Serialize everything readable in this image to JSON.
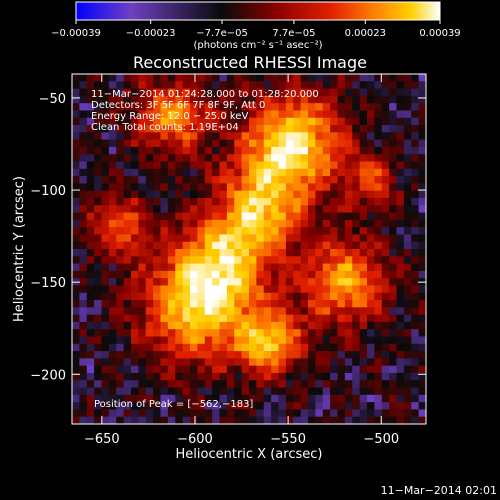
{
  "chart_data": {
    "type": "heatmap",
    "title": "Reconstructed RHESSI Image",
    "xlabel": "Heliocentric X (arcsec)",
    "ylabel": "Heliocentric Y (arcsec)",
    "xlim": [
      -666,
      -476
    ],
    "ylim": [
      -227,
      -37
    ],
    "x_ticks": [
      -650,
      -600,
      -550,
      -500
    ],
    "y_ticks": [
      -50,
      -100,
      -150,
      -200
    ],
    "x_tick_labels": [
      "−650",
      "−600",
      "−550",
      "−500"
    ],
    "y_tick_labels": [
      "−50",
      "−100",
      "−150",
      "−200"
    ],
    "grid": false,
    "colorbar": {
      "range": [
        -0.00039,
        0.00039
      ],
      "ticks": [
        -0.00039,
        -0.00023,
        -7.7e-05,
        7.7e-05,
        0.00023,
        0.00039
      ],
      "tick_labels": [
        "−0.00039",
        "−0.00023",
        "−7.7e−05",
        "7.7e−05",
        "0.00023",
        "0.00039"
      ],
      "unit_label": "(photons cm⁻² s⁻¹ asec⁻²)",
      "colors": [
        "#0000ff",
        "#6e3fc4",
        "#0a0a0a",
        "#8a0000",
        "#e02000",
        "#ff8000",
        "#ffd000",
        "#ffffff"
      ]
    },
    "annotations": [
      "11−Mar−2014 01:24:28.000 to 01:28:20.000",
      "Detectors: 3F 5F 6F 7F 8F 9F, Att 0",
      "Energy Range: 12.0 − 25.0 keV",
      "Clean    Total counts: 1.19E+04"
    ],
    "peak_label": "Position of Peak = [−562,−183]",
    "peak": [
      -562,
      -183
    ],
    "image_grid": {
      "nx": 48,
      "ny": 48
    }
  },
  "footer": {
    "timestamp": "11−Mar−2014 02:01"
  }
}
